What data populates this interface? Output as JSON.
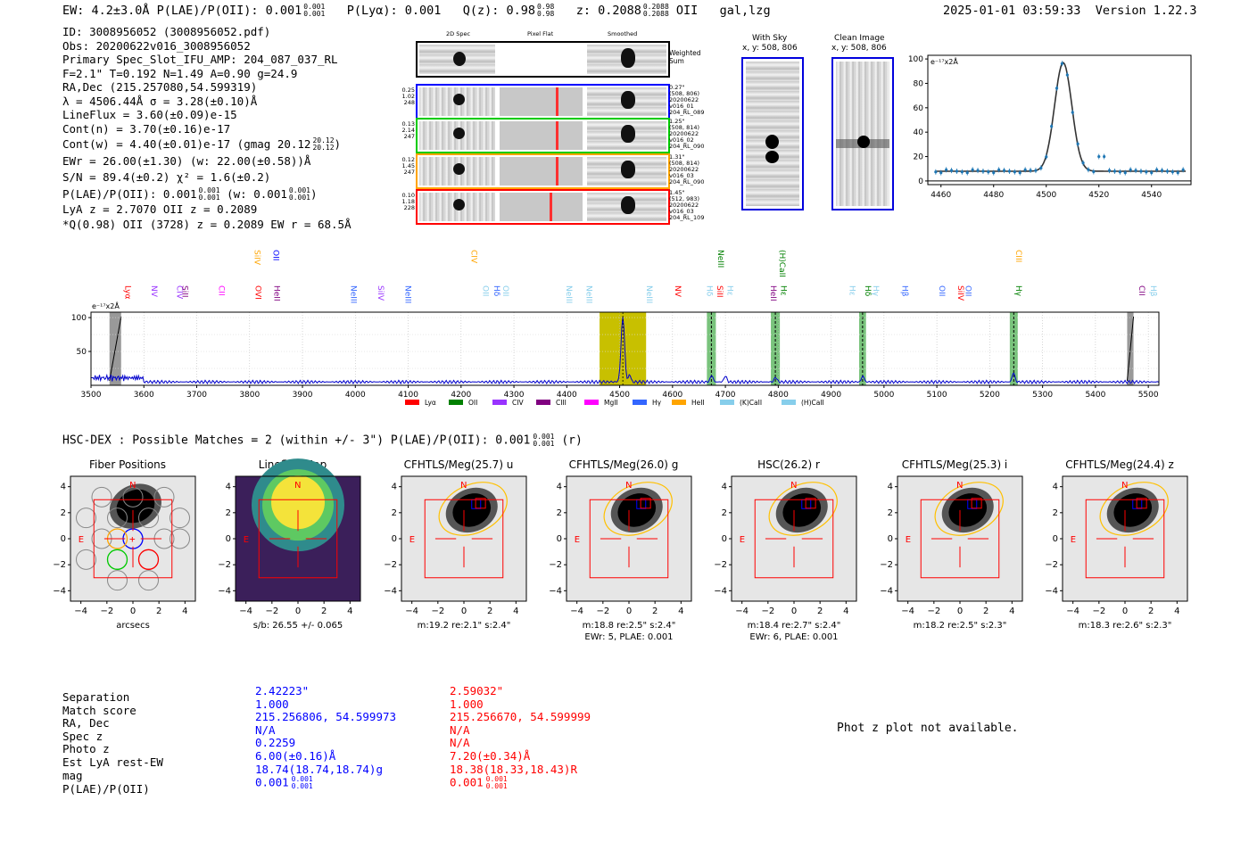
{
  "header": {
    "left": "EW: 4.2±3.0Å  P(LAE)/P(OII): 0.001",
    "left_sup": "0.001",
    "left_sub": "0.001",
    "plya": "P(Lyα): 0.001",
    "qz": "Q(z): 0.98",
    "qz_sup": "0.98",
    "qz_sub": "0.98",
    "z": "z: 0.2088",
    "z_sup": "0.2088",
    "z_sub": "0.2088",
    "z_tail": "OII   gal,lzg",
    "timestamp": "2025-01-01 03:59:33",
    "version": "Version 1.22.3"
  },
  "info": {
    "id": "ID: 3008956052 (3008956052.pdf)",
    "obs": "Obs: 20200622v016_3008956052",
    "primary": "Primary Spec_Slot_IFU_AMP: 204_087_037_RL",
    "fiber": "F=2.1\"  T=0.192  N=1.49  A=0.90  g=24.9",
    "radec": "RA,Dec (215.257080,54.599319)",
    "lambda": "λ = 4506.44Å  σ = 3.28(±0.10)Å",
    "lineflux": "LineFlux = 3.60(±0.09)e-15",
    "contn": "Cont(n) = 3.70(±0.16)e-17",
    "contw": "Cont(w) = 4.40(±0.01)e-17 (gmag 20.12",
    "contw_sup": "20.12",
    "contw_sub": "20.12",
    "contw_tail": ")",
    "ewr": "EWr = 26.00(±1.30) (w: 22.00(±0.58))Å",
    "sn": "S/N = 89.4(±0.2)  χ² = 1.6(±0.2)",
    "plae": "P(LAE)/P(OII): 0.001",
    "plae_sup": "0.001",
    "plae_sub": "0.001",
    "plae_mid": " (w: 0.001",
    "plae_w_sup": "0.001",
    "plae_w_sub": "0.001",
    "plae_tail": ")",
    "lyaz": "LyA z = 2.7070  OII z = 0.2089",
    "q": "*Q(0.98) OII (3728) z = 0.2089  EW r = 68.5Å"
  },
  "spec2d": {
    "col_titles": [
      "2D Spec",
      "Pixel Flat",
      "Smoothed"
    ],
    "weighted_label": "Weighted\nSum",
    "rows": [
      {
        "left": [
          "0.25",
          "1.02",
          "248"
        ],
        "right": [
          "0.27\"",
          "(508, 806)",
          "20200622",
          "v016_01",
          "204_RL_089"
        ],
        "color": "#0000ff"
      },
      {
        "left": [
          "0.13",
          "2.14",
          "247"
        ],
        "right": [
          "1.25\"",
          "(508, 814)",
          "20200622",
          "v016_02",
          "204_RL_090"
        ],
        "color": "#00cc00"
      },
      {
        "left": [
          "0.12",
          "1.45",
          "247"
        ],
        "right": [
          "1.31\"",
          "(508, 814)",
          "20200622",
          "v016_03",
          "204_RL_090"
        ],
        "color": "#ffa500"
      },
      {
        "left": [
          "0.10",
          "1.18",
          "228"
        ],
        "right": [
          "1.45\"",
          "(512, 983)",
          "20200622",
          "v016_03",
          "204_RL_109"
        ],
        "color": "#ff0000"
      }
    ]
  },
  "withsky": {
    "title": "With Sky",
    "coord": "x, y: 508, 806"
  },
  "cleanimage": {
    "title": "Clean Image",
    "coord": "x, y: 508, 806"
  },
  "zoom_chart_data": {
    "type": "line",
    "ylabel": "e⁻¹⁷x2Å",
    "xlim": [
      4455,
      4555
    ],
    "ylim": [
      -3,
      103
    ],
    "xticks": [
      4460,
      4480,
      4500,
      4520,
      4540
    ],
    "yticks": [
      0,
      20,
      40,
      60,
      80,
      100
    ],
    "gaussian": {
      "center": 4506.44,
      "sigma": 3.28,
      "amp": 89,
      "baseline": 8
    }
  },
  "line_labels": [
    {
      "name": "Lyα",
      "x": 3560,
      "row": 1,
      "color": "#ff0000"
    },
    {
      "name": "NV",
      "x": 3610,
      "row": 1,
      "color": "#9933ff"
    },
    {
      "name": "CIV",
      "x": 3658,
      "row": 1,
      "color": "#9933ff"
    },
    {
      "name": "SiII",
      "x": 3668,
      "row": 1,
      "color": "#800080"
    },
    {
      "name": "CII",
      "x": 3737,
      "row": 1,
      "color": "#ff00ff"
    },
    {
      "name": "SiIV",
      "x": 3805,
      "row": 2,
      "color": "#ffa500"
    },
    {
      "name": "OII",
      "x": 3840,
      "row": 2,
      "color": "#0000ff"
    },
    {
      "name": "OVI",
      "x": 3806,
      "row": 1,
      "color": "#ff0000"
    },
    {
      "name": "HeII",
      "x": 3842,
      "row": 1,
      "color": "#800080"
    },
    {
      "name": "NeIII",
      "x": 3987,
      "row": 1,
      "color": "#3366ff"
    },
    {
      "name": "SiIV",
      "x": 4038,
      "row": 1,
      "color": "#9933ff"
    },
    {
      "name": "NeIII",
      "x": 4090,
      "row": 1,
      "color": "#3366ff"
    },
    {
      "name": "CIV",
      "x": 4215,
      "row": 2,
      "color": "#ffa500"
    },
    {
      "name": "OII",
      "x": 4237,
      "row": 1,
      "color": "#87ceeb"
    },
    {
      "name": "Hδ",
      "x": 4258,
      "row": 1,
      "color": "#3366ff"
    },
    {
      "name": "OII",
      "x": 4275,
      "row": 1,
      "color": "#87ceeb"
    },
    {
      "name": "NeIII",
      "x": 4394,
      "row": 1,
      "color": "#87ceeb"
    },
    {
      "name": "NeIII",
      "x": 4432,
      "row": 1,
      "color": "#87ceeb"
    },
    {
      "name": "NeIII",
      "x": 4546,
      "row": 1,
      "color": "#87ceeb"
    },
    {
      "name": "NV",
      "x": 4600,
      "row": 1,
      "color": "#ff0000"
    },
    {
      "name": "NeIII",
      "x": 4681,
      "row": 2,
      "color": "#008000"
    },
    {
      "name": "Hδ",
      "x": 4660,
      "row": 1,
      "color": "#87ceeb"
    },
    {
      "name": "SiII",
      "x": 4680,
      "row": 1,
      "color": "#ff0000"
    },
    {
      "name": "Hε",
      "x": 4699,
      "row": 1,
      "color": "#87ceeb"
    },
    {
      "name": "(H)CaII",
      "x": 4798,
      "row": 2,
      "color": "#008000"
    },
    {
      "name": "HeII",
      "x": 4781,
      "row": 1,
      "color": "#800080"
    },
    {
      "name": "Hε",
      "x": 4800,
      "row": 1,
      "color": "#008000"
    },
    {
      "name": "Hε",
      "x": 4930,
      "row": 1,
      "color": "#87ceeb"
    },
    {
      "name": "Hδ",
      "x": 4960,
      "row": 1,
      "color": "#008000"
    },
    {
      "name": "Hγ",
      "x": 4975,
      "row": 1,
      "color": "#87ceeb"
    },
    {
      "name": "Hβ",
      "x": 5030,
      "row": 1,
      "color": "#3366ff"
    },
    {
      "name": "OII",
      "x": 5100,
      "row": 1,
      "color": "#3366ff"
    },
    {
      "name": "SiIV",
      "x": 5135,
      "row": 1,
      "color": "#ff0000"
    },
    {
      "name": "OII",
      "x": 5150,
      "row": 1,
      "color": "#3366ff"
    },
    {
      "name": "CIII",
      "x": 5245,
      "row": 2,
      "color": "#ffa500"
    },
    {
      "name": "Hγ",
      "x": 5245,
      "row": 1,
      "color": "#008000"
    },
    {
      "name": "CII",
      "x": 5478,
      "row": 1,
      "color": "#800080"
    },
    {
      "name": "Hβ",
      "x": 5500,
      "row": 1,
      "color": "#87ceeb"
    }
  ],
  "full_chart_data": {
    "type": "line",
    "ylabel": "e⁻¹⁷x2Å",
    "xlim": [
      3500,
      5520
    ],
    "ylim": [
      0,
      108
    ],
    "xticks": [
      3500,
      3600,
      3700,
      3800,
      3900,
      4000,
      4100,
      4200,
      4300,
      4400,
      4500,
      4600,
      4700,
      4800,
      4900,
      5000,
      5100,
      5200,
      5300,
      5400,
      5500
    ],
    "yticks": [
      50,
      100
    ],
    "peak": {
      "center": 4506,
      "sigma": 3.3,
      "amp": 96
    },
    "yellow_band": [
      4462,
      4550
    ],
    "green_bands": [
      [
        4665,
        4682
      ],
      [
        4786,
        4803
      ],
      [
        4953,
        4966
      ],
      [
        5238,
        5253
      ]
    ],
    "gray_bands": [
      [
        3535,
        3557
      ],
      [
        5460,
        5472
      ]
    ],
    "legend": [
      {
        "name": "Lyα",
        "color": "#ff0000"
      },
      {
        "name": "OII",
        "color": "#008000"
      },
      {
        "name": "CIV",
        "color": "#9933ff"
      },
      {
        "name": "CIII",
        "color": "#800080"
      },
      {
        "name": "MgII",
        "color": "#ff00ff"
      },
      {
        "name": "Hγ",
        "color": "#3366ff"
      },
      {
        "name": "HeII",
        "color": "#ffa500"
      },
      {
        "name": "(K)CaII",
        "color": "#87ceeb"
      },
      {
        "name": "(H)CaII",
        "color": "#87ceeb"
      }
    ]
  },
  "hsc": {
    "line": "HSC-DEX : Possible Matches = 2 (within +/- 3\")  P(LAE)/P(OII): 0.001",
    "sup": "0.001",
    "sub": "0.001",
    "tail": "(r)"
  },
  "cutouts": [
    {
      "title": "Fiber Positions",
      "caption": "arcsecs",
      "caption2": "",
      "type": "fiber"
    },
    {
      "title": "Lineflux Map",
      "caption": "s/b: 26.55 +/- 0.065",
      "caption2": "",
      "type": "lineflux"
    },
    {
      "title": "CFHTLS/Meg(25.7) u",
      "caption": "m:19.2  re:2.1\"  s:2.4\"",
      "caption2": "",
      "type": "img"
    },
    {
      "title": "CFHTLS/Meg(26.0) g",
      "caption": "m:18.8  re:2.5\"  s:2.4\"",
      "caption2": "EWr: 5, PLAE: 0.001",
      "type": "img"
    },
    {
      "title": "HSC(26.2) r",
      "caption": "m:18.4  re:2.7\"  s:2.4\"",
      "caption2": "EWr: 6, PLAE: 0.001",
      "type": "img"
    },
    {
      "title": "CFHTLS/Meg(25.3) i",
      "caption": "m:18.2  re:2.5\"  s:2.3\"",
      "caption2": "",
      "type": "img"
    },
    {
      "title": "CFHTLS/Meg(24.4) z",
      "caption": "m:18.3  re:2.6\"  s:2.3\"",
      "caption2": "",
      "type": "img"
    }
  ],
  "cutout_axis": {
    "ticks": [
      "4",
      "2",
      "0",
      "−2",
      "−4"
    ],
    "xticks": [
      "−4",
      "−2",
      "0",
      "2",
      "4"
    ],
    "north": "N",
    "east": "E"
  },
  "matches": {
    "labels": [
      "Separation",
      "Match score",
      "RA, Dec",
      "Spec z",
      "Photo z",
      "Est LyA rest-EW",
      "mag",
      "P(LAE)/P(OII)"
    ],
    "blue": [
      "2.42223\"",
      "1.000",
      "215.256806, 54.599973",
      "N/A",
      "0.2259",
      "6.00(±0.16)Å",
      "18.74(18.74,18.74)g",
      "0.001"
    ],
    "blue_sup": "0.001",
    "blue_sub": "0.001",
    "red": [
      "2.59032\"",
      "1.000",
      "215.256670, 54.599999",
      "N/A",
      "N/A",
      "7.20(±0.34)Å",
      "18.38(18.33,18.43)R",
      "0.001"
    ],
    "red_sup": "0.001",
    "red_sub": "0.001",
    "photz_message": "Phot z plot not available."
  }
}
